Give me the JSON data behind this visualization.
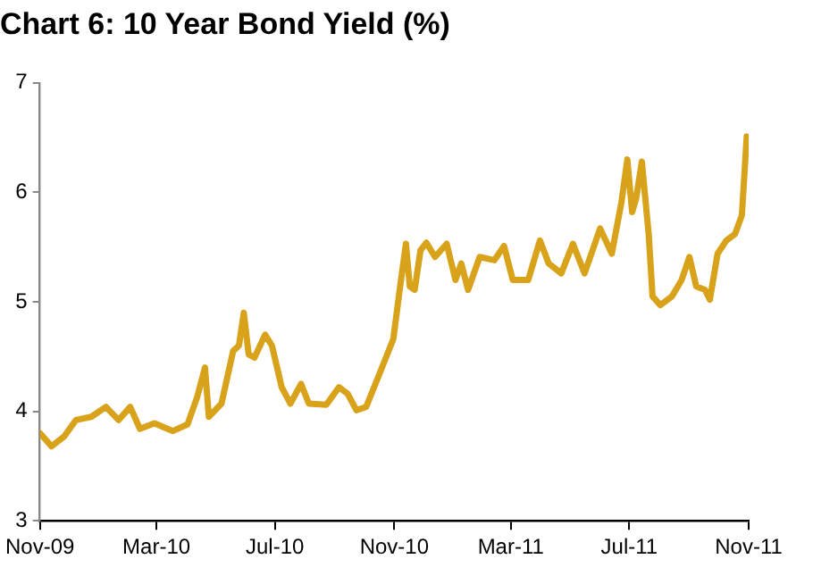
{
  "chart_data": {
    "type": "line",
    "title": "Chart 6: 10 Year Bond Yield (%)",
    "x": [
      "2009-11-01",
      "2009-11-13",
      "2009-11-26",
      "2009-12-08",
      "2009-12-24",
      "2010-01-08",
      "2010-01-21",
      "2010-02-02",
      "2010-02-12",
      "2010-02-27",
      "2010-03-18",
      "2010-04-02",
      "2010-04-12",
      "2010-04-20",
      "2010-04-24",
      "2010-05-07",
      "2010-05-19",
      "2010-05-25",
      "2010-05-30",
      "2010-06-04",
      "2010-06-10",
      "2010-06-21",
      "2010-06-28",
      "2010-07-08",
      "2010-07-17",
      "2010-07-28",
      "2010-08-05",
      "2010-08-23",
      "2010-09-05",
      "2010-09-14",
      "2010-09-23",
      "2010-10-03",
      "2010-10-18",
      "2010-10-31",
      "2010-11-07",
      "2010-11-13",
      "2010-11-17",
      "2010-11-22",
      "2010-11-28",
      "2010-12-04",
      "2010-12-13",
      "2010-12-25",
      "2011-01-03",
      "2011-01-09",
      "2011-01-16",
      "2011-01-28",
      "2011-02-12",
      "2011-02-22",
      "2011-03-03",
      "2011-03-19",
      "2011-03-31",
      "2011-04-09",
      "2011-04-22",
      "2011-05-04",
      "2011-05-16",
      "2011-06-01",
      "2011-06-13",
      "2011-06-23",
      "2011-06-29",
      "2011-07-04",
      "2011-07-08",
      "2011-07-14",
      "2011-07-21",
      "2011-07-25",
      "2011-08-02",
      "2011-08-14",
      "2011-08-24",
      "2011-09-01",
      "2011-09-08",
      "2011-09-17",
      "2011-09-22",
      "2011-09-30",
      "2011-10-09",
      "2011-10-18",
      "2011-10-25",
      "2011-10-30",
      "2011-11-01"
    ],
    "series": [
      {
        "color": "#d9a21b",
        "values": [
          3.8,
          3.68,
          3.77,
          3.92,
          3.95,
          4.04,
          3.92,
          4.04,
          3.84,
          3.89,
          3.82,
          3.88,
          4.13,
          4.4,
          3.95,
          4.07,
          4.55,
          4.6,
          4.9,
          4.52,
          4.49,
          4.7,
          4.6,
          4.22,
          4.07,
          4.25,
          4.07,
          4.06,
          4.22,
          4.16,
          4.01,
          4.04,
          4.37,
          4.66,
          5.14,
          5.53,
          5.14,
          5.11,
          5.47,
          5.54,
          5.41,
          5.53,
          5.2,
          5.35,
          5.11,
          5.41,
          5.38,
          5.51,
          5.2,
          5.2,
          5.56,
          5.35,
          5.26,
          5.53,
          5.26,
          5.67,
          5.44,
          5.91,
          6.3,
          5.82,
          5.94,
          6.28,
          5.62,
          5.05,
          4.97,
          5.05,
          5.2,
          5.41,
          5.14,
          5.11,
          5.02,
          5.44,
          5.56,
          5.62,
          5.79,
          6.51,
          6.45
        ]
      }
    ],
    "xlim": [
      "2009-11-01",
      "2011-11-01"
    ],
    "xticks": [
      {
        "value": "2009-11-01",
        "label": "Nov-09"
      },
      {
        "value": "2010-03-01",
        "label": "Mar-10"
      },
      {
        "value": "2010-07-01",
        "label": "Jul-10"
      },
      {
        "value": "2010-11-01",
        "label": "Nov-10"
      },
      {
        "value": "2011-03-01",
        "label": "Mar-11"
      },
      {
        "value": "2011-07-01",
        "label": "Jul-11"
      },
      {
        "value": "2011-11-01",
        "label": "Nov-11"
      }
    ],
    "ylim": [
      3,
      7
    ],
    "yticks": [
      3,
      4,
      5,
      6,
      7
    ],
    "grid": false,
    "legend": false,
    "marker": "none",
    "line_style": "solid"
  }
}
